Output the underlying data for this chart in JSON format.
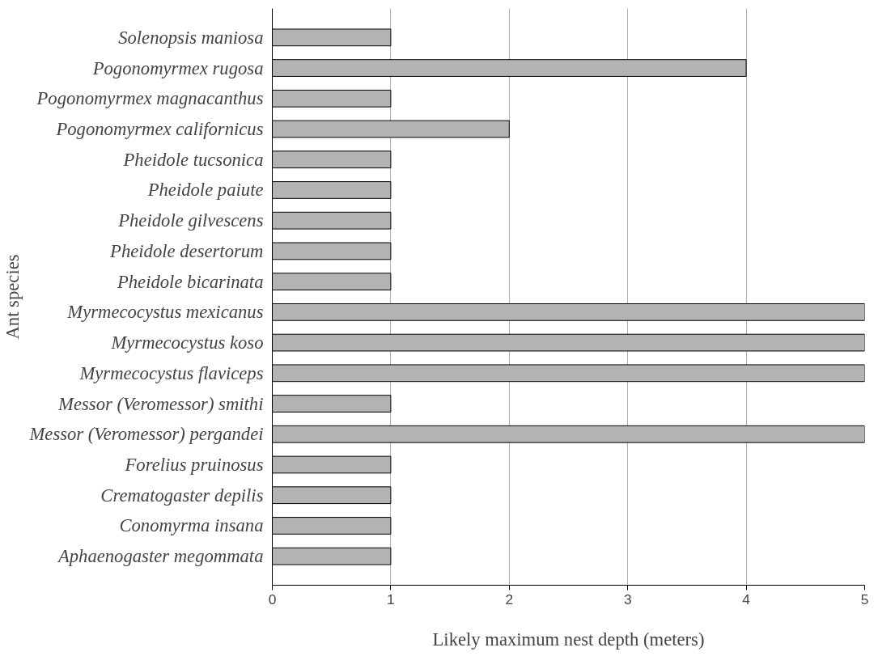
{
  "chart_data": {
    "type": "bar",
    "orientation": "horizontal",
    "xlabel": "Likely maximum nest depth (meters)",
    "ylabel": "Ant species",
    "categories": [
      "Solenopsis maniosa",
      "Pogonomyrmex rugosa",
      "Pogonomyrmex magnacanthus",
      "Pogonomyrmex californicus",
      "Pheidole tucsonica",
      "Pheidole paiute",
      "Pheidole gilvescens",
      "Pheidole desertorum",
      "Pheidole bicarinata",
      "Myrmecocystus mexicanus",
      "Myrmecocystus koso",
      "Myrmecocystus flaviceps",
      "Messor (Veromessor) smithi",
      "Messor (Veromessor) pergandei",
      "Forelius pruinosus",
      "Crematogaster depilis",
      "Conomyrma insana",
      "Aphaenogaster megommata"
    ],
    "values": [
      1,
      4,
      1,
      2,
      1,
      1,
      1,
      1,
      1,
      5,
      5,
      5,
      1,
      5,
      1,
      1,
      1,
      1
    ],
    "color": "#b3b3b3",
    "xlim": [
      0,
      5
    ],
    "xticks": [
      0,
      1,
      2,
      3,
      4,
      5
    ],
    "grid": "x"
  }
}
